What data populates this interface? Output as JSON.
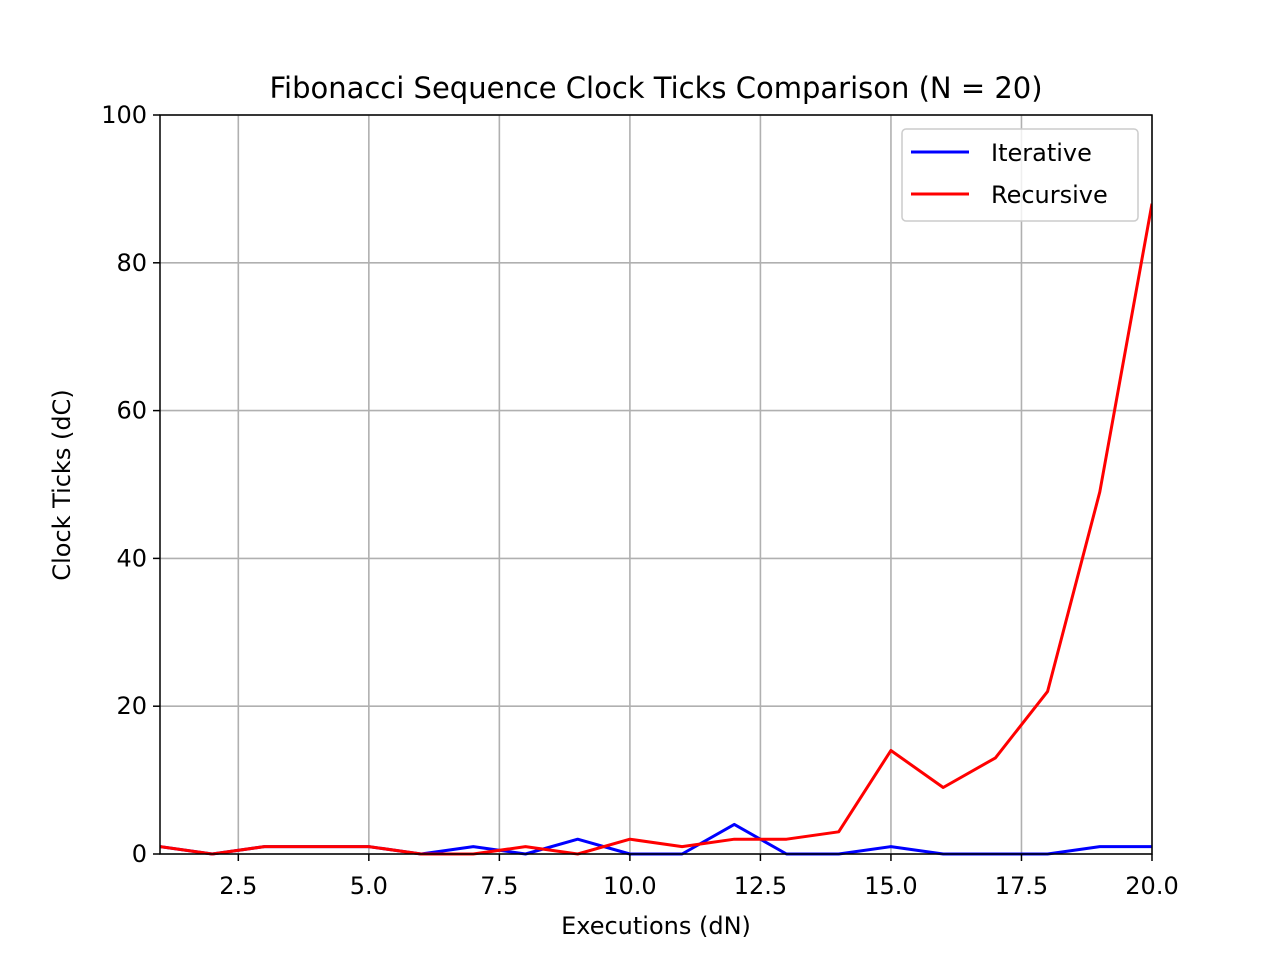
{
  "chart_data": {
    "type": "line",
    "title": "Fibonacci Sequence Clock Ticks Comparison (N = 20)",
    "xlabel": "Executions (dN)",
    "ylabel": "Clock Ticks (dC)",
    "xlim": [
      1,
      20
    ],
    "ylim": [
      0,
      100
    ],
    "xticks": [
      2.5,
      5.0,
      7.5,
      10.0,
      12.5,
      15.0,
      17.5,
      20.0
    ],
    "xtick_labels": [
      "2.5",
      "5.0",
      "7.5",
      "10.0",
      "12.5",
      "15.0",
      "17.5",
      "20.0"
    ],
    "yticks": [
      0,
      20,
      40,
      60,
      80,
      100
    ],
    "ytick_labels": [
      "0",
      "20",
      "40",
      "60",
      "80",
      "100"
    ],
    "grid": true,
    "legend_position": "top-right",
    "x": [
      1,
      2,
      3,
      4,
      5,
      6,
      7,
      8,
      9,
      10,
      11,
      12,
      13,
      14,
      15,
      16,
      17,
      18,
      19,
      20
    ],
    "series": [
      {
        "name": "Iterative",
        "color": "#0000ff",
        "values": [
          1,
          0,
          1,
          1,
          1,
          0,
          1,
          0,
          2,
          0,
          0,
          4,
          0,
          0,
          1,
          0,
          0,
          0,
          1,
          1
        ]
      },
      {
        "name": "Recursive",
        "color": "#ff0000",
        "values": [
          1,
          0,
          1,
          1,
          1,
          0,
          0,
          1,
          0,
          2,
          1,
          2,
          2,
          3,
          14,
          9,
          13,
          22,
          49,
          88
        ]
      }
    ]
  }
}
